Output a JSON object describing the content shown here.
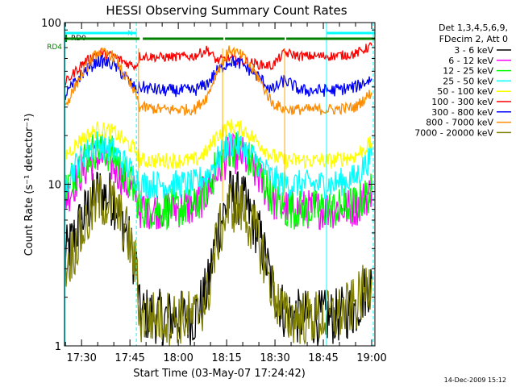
{
  "chart_data": {
    "type": "line",
    "title": "HESSI Observing Summary Count Rates",
    "xlabel": "Start Time (03-May-07 17:24:42)",
    "ylabel": "Count Rate (s⁻¹ detector⁻¹)",
    "y_scale": "log",
    "ylim": [
      1,
      100
    ],
    "xlim": [
      "17:24:42",
      "19:01:00"
    ],
    "x_ticks": [
      "17:30",
      "17:45",
      "18:00",
      "18:15",
      "18:30",
      "18:45",
      "19:00"
    ],
    "y_ticks": [
      "1",
      "10",
      "100"
    ],
    "legend": {
      "position": "right",
      "header": [
        "Det 1,3,4,5,6,9,",
        "FDecim 2, Att 0"
      ]
    },
    "timestamp": "14-Dec-2009 15:12",
    "series": [
      {
        "name": "3 - 6 keV",
        "color": "#000000",
        "x": [
          "17:24:42",
          "17:30",
          "17:35",
          "17:40",
          "17:44",
          "17:47",
          "17:48",
          "17:55",
          "18:05",
          "18:09",
          "18:12",
          "18:16",
          "18:20",
          "18:25",
          "18:29",
          "18:33",
          "18:38",
          "18:48",
          "18:55",
          "19:00"
        ],
        "y": [
          3.5,
          6,
          9,
          8,
          5,
          3,
          1.6,
          1.5,
          1.5,
          2.2,
          5,
          8.5,
          8,
          5,
          2.4,
          1.6,
          1.5,
          1.5,
          1.7,
          2.6
        ]
      },
      {
        "name": "6 - 12 keV",
        "color": "#ff00ff",
        "x": [
          "17:24:42",
          "17:30",
          "17:35",
          "17:40",
          "17:44",
          "17:47",
          "17:48",
          "17:55",
          "18:05",
          "18:09",
          "18:12",
          "18:16",
          "18:20",
          "18:25",
          "18:29",
          "18:33",
          "18:38",
          "18:48",
          "18:55",
          "19:00"
        ],
        "y": [
          8,
          12,
          15,
          13,
          10,
          8.5,
          7,
          7,
          7.2,
          9,
          12,
          15.5,
          15,
          11,
          8,
          7,
          7,
          7,
          7.2,
          9
        ]
      },
      {
        "name": "12 - 25 keV",
        "color": "#00ff00",
        "x": [
          "17:24:42",
          "17:30",
          "17:35",
          "17:40",
          "17:44",
          "17:47",
          "17:48",
          "17:55",
          "18:05",
          "18:09",
          "18:12",
          "18:16",
          "18:20",
          "18:25",
          "18:29",
          "18:33",
          "18:38",
          "18:48",
          "18:55",
          "19:00"
        ],
        "y": [
          9,
          14,
          17,
          15,
          11,
          8.5,
          7,
          7,
          7.2,
          9.5,
          13,
          17,
          16,
          12,
          8.5,
          7,
          7,
          7,
          7.5,
          9
        ]
      },
      {
        "name": "25 - 50 keV",
        "color": "#00ffff",
        "x": [
          "17:24:42",
          "17:30",
          "17:35",
          "17:40",
          "17:44",
          "17:47",
          "17:48",
          "17:55",
          "18:05",
          "18:09",
          "18:12",
          "18:16",
          "18:20",
          "18:25",
          "18:29",
          "18:33",
          "18:38",
          "18:48",
          "18:55",
          "19:00"
        ],
        "y": [
          10,
          15,
          18,
          16,
          13,
          11,
          10,
          10,
          10,
          11.5,
          14,
          18,
          17,
          13.5,
          11,
          10,
          10,
          10,
          11,
          15
        ]
      },
      {
        "name": "50 - 100 keV",
        "color": "#ffff00",
        "x": [
          "17:24:42",
          "17:30",
          "17:35",
          "17:40",
          "17:44",
          "17:47",
          "17:48",
          "17:55",
          "18:05",
          "18:09",
          "18:12",
          "18:16",
          "18:20",
          "18:25",
          "18:29",
          "18:33",
          "18:38",
          "18:48",
          "18:55",
          "19:00"
        ],
        "y": [
          15,
          19,
          22,
          21,
          18,
          16,
          14,
          14,
          14,
          16,
          20,
          23,
          22,
          18,
          15,
          14,
          14,
          14,
          15,
          18
        ]
      },
      {
        "name": "100 - 300 keV",
        "color": "#ff0000",
        "x": [
          "17:24:42",
          "17:30",
          "17:35",
          "17:40",
          "17:44",
          "17:47",
          "17:48",
          "17:55",
          "18:05",
          "18:09",
          "18:12",
          "18:16",
          "18:20",
          "18:25",
          "18:29",
          "18:33",
          "18:38",
          "18:48",
          "18:55",
          "19:00"
        ],
        "y": [
          42,
          55,
          65,
          62,
          56,
          54,
          62,
          61,
          62,
          68,
          58,
          60,
          58,
          55,
          54,
          65,
          62,
          62,
          64,
          72
        ]
      },
      {
        "name": "300 - 800 keV",
        "color": "#0000ff",
        "x": [
          "17:24:42",
          "17:30",
          "17:35",
          "17:40",
          "17:44",
          "17:47",
          "17:48",
          "17:55",
          "18:05",
          "18:09",
          "18:12",
          "18:16",
          "18:20",
          "18:25",
          "18:29",
          "18:33",
          "18:38",
          "18:48",
          "18:55",
          "19:00"
        ],
        "y": [
          35,
          48,
          58,
          55,
          45,
          38,
          40,
          38,
          38,
          42,
          50,
          58,
          55,
          46,
          38,
          44,
          38,
          38,
          40,
          45
        ]
      },
      {
        "name": "800 - 7000 keV",
        "color": "#ff8c00",
        "x": [
          "17:24:42",
          "17:30",
          "17:35",
          "17:40",
          "17:44",
          "17:47",
          "17:48",
          "17:55",
          "18:05",
          "18:09",
          "18:12",
          "18:16",
          "18:20",
          "18:25",
          "18:29",
          "18:33",
          "18:38",
          "18:48",
          "18:55",
          "19:00"
        ],
        "y": [
          30,
          48,
          66,
          62,
          45,
          35,
          30,
          29,
          29,
          35,
          50,
          68,
          62,
          45,
          32,
          29,
          29,
          29,
          30,
          37
        ]
      },
      {
        "name": "7000 - 20000 keV",
        "color": "#808000",
        "x": [
          "17:24:42",
          "17:30",
          "17:35",
          "17:40",
          "17:44",
          "17:47",
          "17:48",
          "17:55",
          "18:05",
          "18:09",
          "18:12",
          "18:16",
          "18:20",
          "18:25",
          "18:29",
          "18:33",
          "18:38",
          "18:48",
          "18:55",
          "19:00"
        ],
        "y": [
          3,
          5,
          8,
          7.5,
          5,
          3,
          1.5,
          1.5,
          1.5,
          2,
          4.5,
          7.5,
          7,
          4.5,
          2.3,
          1.5,
          1.5,
          1.5,
          1.8,
          2.6
        ]
      }
    ],
    "markers": {
      "rd0": {
        "label": "RD0",
        "start": "17:24:42",
        "end": "17:47:00",
        "color": "#00ffff"
      },
      "n": {
        "label": "N",
        "color": "#00ffff"
      },
      "rd4": {
        "label": "RD4",
        "color": "#008000",
        "segments": [
          [
            "17:24:42",
            "17:48:00"
          ],
          [
            "17:49:00",
            "18:14:00"
          ],
          [
            "18:14:30",
            "18:33:00"
          ],
          [
            "18:33:30",
            "19:01:00"
          ]
        ]
      },
      "night_top": {
        "color": "#00ffff",
        "segments": [
          [
            "18:46:00",
            "19:01:00"
          ]
        ]
      },
      "vertical_solid": {
        "color": "#00ffff",
        "times": [
          "17:24:50",
          "18:46:00"
        ]
      },
      "vertical_dashed": {
        "color": "#00ffff",
        "times": [
          "17:47:00",
          "19:00:30"
        ]
      },
      "attenuator_lines": {
        "color": "#ffaa00",
        "times": [
          "17:47:40",
          "18:13:45",
          "18:33:00"
        ]
      }
    }
  }
}
